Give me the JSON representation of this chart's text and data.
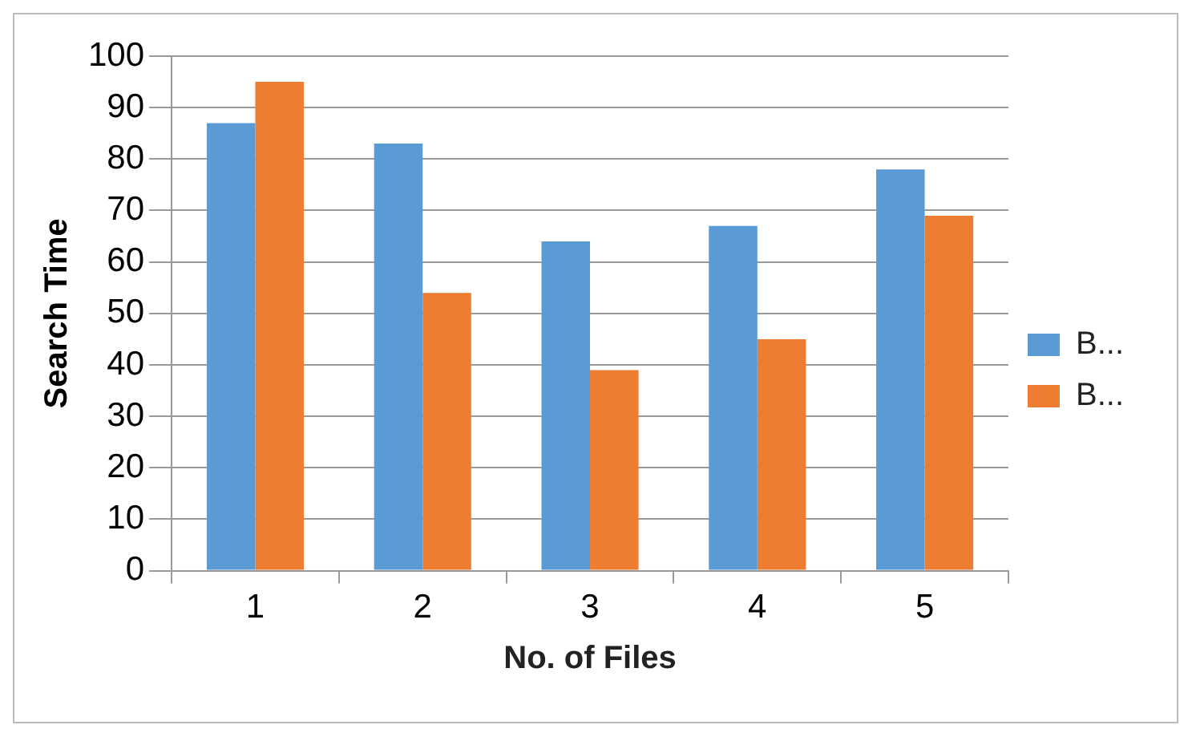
{
  "chart_data": {
    "type": "bar",
    "xlabel": "No. of Files",
    "ylabel": "Search Time",
    "categories": [
      "1",
      "2",
      "3",
      "4",
      "5"
    ],
    "series": [
      {
        "name": "B...",
        "color": "#5b9bd5",
        "values": [
          87,
          83,
          64,
          67,
          78
        ]
      },
      {
        "name": "B...",
        "color": "#ed7d31",
        "values": [
          95,
          54,
          39,
          45,
          69
        ]
      }
    ],
    "ylim": [
      0,
      100
    ],
    "yticks": [
      0,
      10,
      20,
      30,
      40,
      50,
      60,
      70,
      80,
      90,
      100
    ],
    "grid": "y",
    "legend": "right"
  }
}
